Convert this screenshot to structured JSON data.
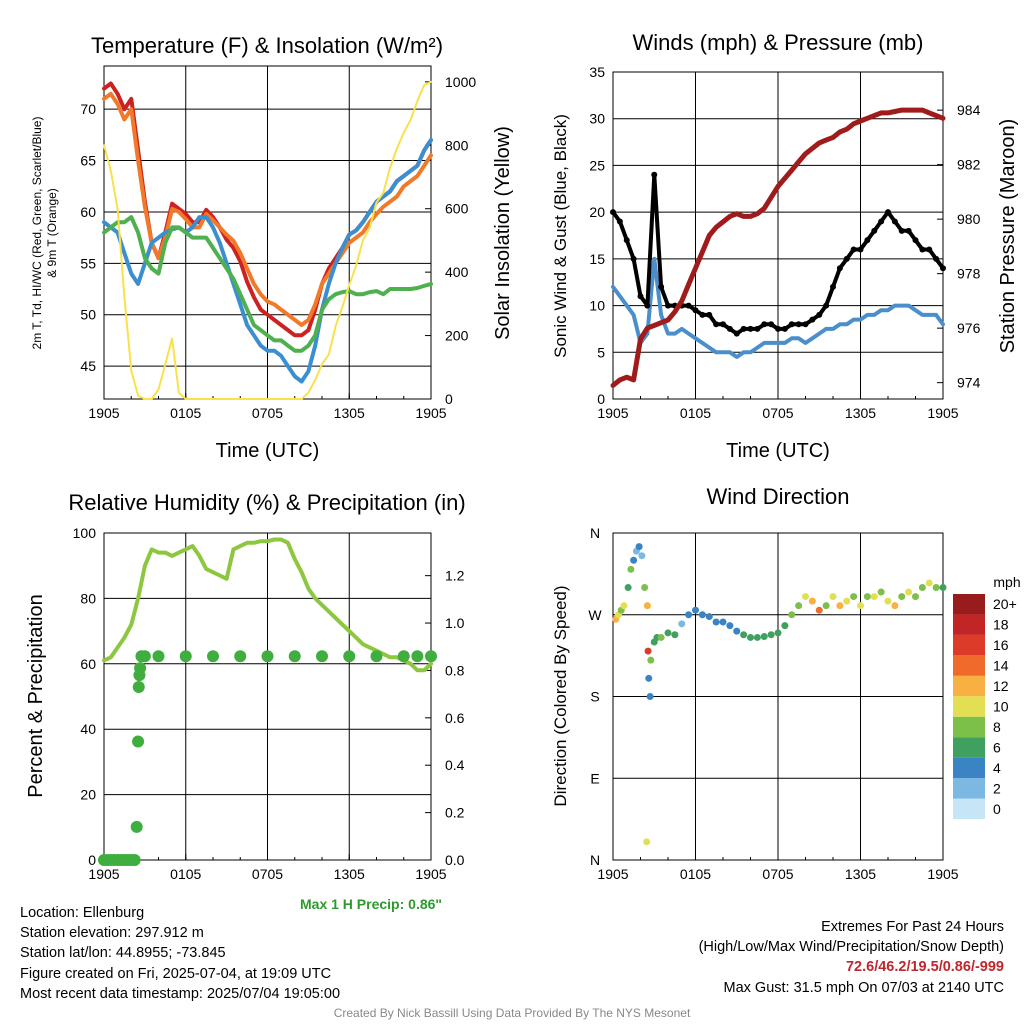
{
  "chart_data": [
    {
      "type": "line",
      "title": "Temperature (F) & Insolation (W/m²)",
      "xlabel": "Time (UTC)",
      "ylabel_left": "2m T, Td, HI/WC (Red, Green, Scarlet/Blue) & 9m T (Orange)",
      "ylabel_right": "Solar Insolation (Yellow)",
      "xticks": [
        "1905",
        "0105",
        "0705",
        "1305",
        "1905"
      ],
      "ylim_left": [
        41.8,
        74.2
      ],
      "yticks_left": [
        45,
        50,
        55,
        60,
        65,
        70
      ],
      "ylim_right": [
        0,
        1050
      ],
      "yticks_right": [
        0,
        200,
        400,
        600,
        800,
        1000
      ],
      "x_hours": [
        0,
        0.5,
        1,
        1.5,
        2,
        2.5,
        3,
        3.5,
        4,
        4.5,
        5,
        5.5,
        6,
        6.5,
        7,
        7.5,
        8,
        8.5,
        9,
        9.5,
        10,
        10.5,
        11,
        11.5,
        12,
        12.5,
        13,
        13.5,
        14,
        14.5,
        15,
        15.5,
        16,
        16.5,
        17,
        17.5,
        18,
        18.5,
        19,
        19.5,
        20,
        20.5,
        21,
        21.5,
        22,
        22.5,
        23,
        23.5,
        24
      ],
      "series": [
        {
          "name": "2m T",
          "color": "#cc2222",
          "values": [
            72,
            72.5,
            71.5,
            70,
            71,
            66,
            61,
            57,
            55.5,
            58,
            60.8,
            60.3,
            59.8,
            59,
            59,
            60.2,
            59.5,
            58.5,
            57.3,
            56.5,
            55.2,
            53.2,
            51.7,
            50.5,
            50,
            49.5,
            49,
            48.5,
            48,
            48,
            48.5,
            50.5,
            53,
            54.5,
            55.5,
            56.5,
            57.8,
            58.2,
            59,
            60,
            61,
            61.5,
            62,
            63,
            63.5,
            64,
            64.5,
            66,
            67
          ]
        },
        {
          "name": "9m T",
          "color": "#f07a2a",
          "values": [
            71,
            71.5,
            70.5,
            69,
            70,
            65,
            60.5,
            57,
            55.5,
            57.5,
            60.3,
            60,
            59.3,
            58.5,
            58.5,
            59.8,
            59.2,
            58.5,
            57.8,
            57.2,
            56,
            54.5,
            53,
            52,
            51.3,
            51,
            50.5,
            50,
            49.5,
            49,
            49.5,
            51,
            53,
            54,
            55,
            56,
            57,
            57.5,
            58,
            59,
            59.8,
            60.5,
            61,
            61.5,
            62.5,
            63,
            63.5,
            64.5,
            65.5
          ]
        },
        {
          "name": "HI/WC",
          "color": "#3b8fd0",
          "values": [
            59,
            58.5,
            58,
            56,
            54,
            53,
            55,
            57,
            57.5,
            58,
            58.3,
            58.5,
            58,
            58.5,
            59.5,
            59.5,
            58.5,
            57,
            55,
            53,
            51,
            49,
            48,
            47,
            46.5,
            46.5,
            46,
            45,
            44,
            43.5,
            44.5,
            47,
            50.5,
            53,
            55,
            56.5,
            57.8,
            58.2,
            59,
            60,
            61,
            61.5,
            62,
            63,
            63.5,
            64,
            64.5,
            66,
            67
          ]
        },
        {
          "name": "Td",
          "color": "#4fb04f",
          "values": [
            58,
            58.5,
            59,
            59,
            59.5,
            58,
            55.5,
            54.5,
            54,
            57,
            58.5,
            58.5,
            58,
            57.5,
            57.5,
            57.5,
            56.5,
            55.5,
            54.5,
            53.5,
            52,
            50.5,
            49,
            48.5,
            48,
            47.5,
            47.5,
            47,
            46.5,
            46.5,
            47,
            48,
            50.5,
            51.5,
            52,
            52.2,
            52.3,
            52,
            52,
            52.2,
            52.3,
            52,
            52.5,
            52.5,
            52.5,
            52.5,
            52.6,
            52.8,
            53
          ]
        },
        {
          "name": "Solar Insolation",
          "color": "#f9e14a",
          "axis": "right",
          "values": [
            800,
            720,
            600,
            320,
            90,
            10,
            0,
            0,
            30,
            110,
            190,
            20,
            0,
            0,
            0,
            0,
            0,
            0,
            0,
            0,
            0,
            0,
            0,
            0,
            0,
            0,
            0,
            0,
            0,
            0,
            20,
            60,
            110,
            140,
            230,
            290,
            360,
            420,
            500,
            540,
            620,
            650,
            730,
            790,
            840,
            880,
            940,
            990,
            1000
          ]
        }
      ]
    },
    {
      "type": "line",
      "title": "Winds (mph) & Pressure (mb)",
      "xlabel": "Time (UTC)",
      "ylabel_left": "Sonic Wind & Gust (Blue, Black)",
      "ylabel_right": "Station Pressure (Maroon)",
      "xticks": [
        "1905",
        "0105",
        "0705",
        "1305",
        "1905"
      ],
      "ylim_left": [
        0,
        35
      ],
      "yticks_left": [
        0,
        5,
        10,
        15,
        20,
        25,
        30,
        35
      ],
      "ylim_right": [
        973.4,
        985.4
      ],
      "yticks_right": [
        974,
        976,
        978,
        980,
        982,
        984
      ],
      "x_hours": [
        0,
        0.5,
        1,
        1.5,
        2,
        2.5,
        3,
        3.5,
        4,
        4.5,
        5,
        5.5,
        6,
        6.5,
        7,
        7.5,
        8,
        8.5,
        9,
        9.5,
        10,
        10.5,
        11,
        11.5,
        12,
        12.5,
        13,
        13.5,
        14,
        14.5,
        15,
        15.5,
        16,
        16.5,
        17,
        17.5,
        18,
        18.5,
        19,
        19.5,
        20,
        20.5,
        21,
        21.5,
        22,
        22.5,
        23,
        23.5,
        24
      ],
      "series": [
        {
          "name": "Sonic Wind",
          "color": "#4a8fcc",
          "values": [
            12,
            11,
            10,
            9,
            6,
            7,
            15,
            9,
            7,
            7,
            7.5,
            7,
            6.5,
            6,
            5.5,
            5,
            5,
            5,
            4.5,
            5,
            5,
            5.5,
            6,
            6,
            6,
            6,
            6.5,
            6.5,
            6,
            6.5,
            7,
            7.5,
            7.5,
            8,
            8,
            8.5,
            8.5,
            9,
            9,
            9.5,
            9.5,
            10,
            10,
            10,
            9.5,
            9,
            9,
            9,
            8
          ]
        },
        {
          "name": "Gust",
          "color": "#000000",
          "values": [
            20,
            19,
            17,
            15,
            11,
            10,
            24,
            12,
            10,
            10,
            10,
            10,
            9.5,
            9,
            9,
            8,
            8,
            7.5,
            7,
            7.5,
            7.5,
            7.5,
            8,
            8,
            7.5,
            7.5,
            8,
            8,
            8,
            8.5,
            9,
            10,
            12,
            14,
            15,
            16,
            16,
            17,
            18,
            19,
            20,
            19,
            18,
            18,
            17,
            16,
            16,
            15,
            14
          ]
        },
        {
          "name": "Station Pressure",
          "color": "#a01c1c",
          "axis": "right",
          "values": [
            973.9,
            974.1,
            974.2,
            974.1,
            975.6,
            976,
            976.1,
            976.2,
            976.3,
            976.6,
            977,
            977.6,
            978.2,
            978.8,
            979.4,
            979.7,
            979.9,
            980.1,
            980.2,
            980.1,
            980.1,
            980.2,
            980.4,
            980.8,
            981.2,
            981.5,
            981.8,
            982.1,
            982.4,
            982.6,
            982.8,
            982.9,
            983,
            983.2,
            983.3,
            983.5,
            983.6,
            983.7,
            983.8,
            983.9,
            983.9,
            983.95,
            984,
            984,
            984,
            984,
            983.9,
            983.8,
            983.7
          ]
        }
      ]
    },
    {
      "type": "line",
      "title": "Relative Humidity (%) & Precipitation (in)",
      "ylabel_left": "Percent & Precipitation",
      "xticks": [
        "1905",
        "0105",
        "0705",
        "1305",
        "1905"
      ],
      "ylim_left": [
        0,
        100
      ],
      "yticks_left": [
        0,
        20,
        40,
        60,
        80,
        100
      ],
      "ylim_right": [
        0,
        1.38
      ],
      "yticks_right": [
        "0.0",
        "0.2",
        "0.4",
        "0.6",
        "0.8",
        "1.0",
        "1.2"
      ],
      "x_hours": [
        0,
        0.5,
        1,
        1.5,
        2,
        2.5,
        3,
        3.5,
        4,
        4.5,
        5,
        5.5,
        6,
        6.5,
        7,
        7.5,
        8,
        8.5,
        9,
        9.5,
        10,
        10.5,
        11,
        11.5,
        12,
        12.5,
        13,
        13.5,
        14,
        14.5,
        15,
        15.5,
        16,
        16.5,
        17,
        17.5,
        18,
        18.5,
        19,
        19.5,
        20,
        20.5,
        21,
        21.5,
        22,
        22.5,
        23,
        23.5,
        24
      ],
      "series": [
        {
          "name": "Relative Humidity",
          "color": "#8dc63f",
          "values": [
            61,
            62,
            65,
            68,
            72,
            80,
            90,
            95,
            94,
            94,
            93,
            94,
            95,
            96,
            93,
            89,
            88,
            87,
            86,
            95,
            96,
            97,
            97,
            97.5,
            97.5,
            98,
            98,
            97,
            92,
            88,
            83,
            80,
            78,
            76,
            74,
            72,
            70,
            68,
            66,
            65,
            64,
            63,
            62,
            62,
            61,
            60,
            58,
            58,
            60
          ]
        },
        {
          "name": "Precipitation",
          "color": "#3fae3f",
          "axis": "right",
          "points": [
            [
              0,
              0
            ],
            [
              0.25,
              0
            ],
            [
              0.5,
              0
            ],
            [
              0.75,
              0
            ],
            [
              1,
              0
            ],
            [
              1.25,
              0
            ],
            [
              1.5,
              0
            ],
            [
              1.75,
              0
            ],
            [
              2,
              0
            ],
            [
              2.25,
              0
            ],
            [
              2.4,
              0.14
            ],
            [
              2.5,
              0.5
            ],
            [
              2.55,
              0.73
            ],
            [
              2.6,
              0.78
            ],
            [
              2.65,
              0.81
            ],
            [
              2.75,
              0.86
            ],
            [
              3,
              0.86
            ],
            [
              4,
              0.86
            ],
            [
              6,
              0.86
            ],
            [
              8,
              0.86
            ],
            [
              10,
              0.86
            ],
            [
              12,
              0.86
            ],
            [
              14,
              0.86
            ],
            [
              16,
              0.86
            ],
            [
              18,
              0.86
            ],
            [
              20,
              0.86
            ],
            [
              22,
              0.86
            ],
            [
              23,
              0.86
            ],
            [
              24,
              0.86
            ]
          ]
        }
      ]
    },
    {
      "type": "scatter",
      "title": "Wind Direction",
      "ylabel": "Direction (Colored By Speed)",
      "xticks": [
        "1905",
        "0105",
        "0705",
        "1305",
        "1905"
      ],
      "yticks": [
        "N",
        "E",
        "S",
        "W",
        "N"
      ],
      "ylim": [
        0,
        360
      ],
      "colorbar": {
        "label": "mph",
        "levels": [
          "0",
          "2",
          "4",
          "6",
          "8",
          "10",
          "12",
          "14",
          "16",
          "18",
          "20+"
        ],
        "colors": [
          "#c6e5f7",
          "#7cb9e2",
          "#3b84c4",
          "#40a060",
          "#7cc04a",
          "#e2e052",
          "#f8b043",
          "#f06a2c",
          "#dd3b2a",
          "#c22525",
          "#991c1c"
        ]
      },
      "points": [
        [
          0.2,
          265,
          12
        ],
        [
          0.4,
          270,
          10
        ],
        [
          0.6,
          275,
          8
        ],
        [
          0.8,
          280,
          10
        ],
        [
          1.1,
          300,
          6
        ],
        [
          1.3,
          320,
          8
        ],
        [
          1.5,
          330,
          4
        ],
        [
          1.7,
          340,
          2
        ],
        [
          1.9,
          345,
          4
        ],
        [
          2.1,
          335,
          2
        ],
        [
          2.3,
          300,
          8
        ],
        [
          2.5,
          280,
          12
        ],
        [
          2.55,
          230,
          16
        ],
        [
          2.6,
          200,
          4
        ],
        [
          2.7,
          180,
          4
        ],
        [
          2.75,
          220,
          8
        ],
        [
          2.45,
          20,
          10
        ],
        [
          3,
          240,
          6
        ],
        [
          3.2,
          245,
          6
        ],
        [
          3.5,
          245,
          8
        ],
        [
          4,
          250,
          6
        ],
        [
          4.5,
          248,
          6
        ],
        [
          5,
          260,
          2
        ],
        [
          5.5,
          270,
          4
        ],
        [
          6,
          275,
          4
        ],
        [
          6.5,
          270,
          4
        ],
        [
          7,
          268,
          4
        ],
        [
          7.5,
          262,
          4
        ],
        [
          8,
          262,
          4
        ],
        [
          8.5,
          258,
          4
        ],
        [
          9,
          252,
          4
        ],
        [
          9.5,
          248,
          6
        ],
        [
          10,
          245,
          6
        ],
        [
          10.5,
          245,
          6
        ],
        [
          11,
          246,
          6
        ],
        [
          11.5,
          248,
          6
        ],
        [
          12,
          250,
          6
        ],
        [
          12.5,
          258,
          6
        ],
        [
          13,
          270,
          8
        ],
        [
          13.5,
          280,
          8
        ],
        [
          14,
          290,
          10
        ],
        [
          14.5,
          285,
          12
        ],
        [
          15,
          275,
          14
        ],
        [
          15.5,
          280,
          8
        ],
        [
          16,
          290,
          10
        ],
        [
          16.5,
          280,
          12
        ],
        [
          17,
          285,
          10
        ],
        [
          17.5,
          290,
          8
        ],
        [
          18,
          280,
          10
        ],
        [
          18.5,
          290,
          8
        ],
        [
          19,
          290,
          10
        ],
        [
          19.5,
          295,
          8
        ],
        [
          20,
          285,
          10
        ],
        [
          20.5,
          280,
          12
        ],
        [
          21,
          290,
          8
        ],
        [
          21.5,
          295,
          10
        ],
        [
          22,
          290,
          8
        ],
        [
          22.5,
          300,
          8
        ],
        [
          23,
          305,
          10
        ],
        [
          23.5,
          300,
          8
        ],
        [
          24,
          300,
          6
        ]
      ]
    }
  ],
  "precip_max_label": "Max 1 H Precip: 0.86\"",
  "info_left": [
    "Location: Ellenburg",
    "Station elevation: 297.912 m",
    "Station lat/lon: 44.8955; -73.845",
    "Figure created on Fri, 2025-07-04, at 19:09 UTC",
    "Most recent data timestamp: 2025/07/04 19:05:00"
  ],
  "info_right": {
    "line1": "Extremes For Past 24 Hours",
    "line2": "(High/Low/Max Wind/Precipitation/Snow Depth)",
    "extremes": "72.6/46.2/19.5/0.86/-999",
    "gust": "Max Gust: 31.5 mph On 07/03 at 2140 UTC"
  },
  "credit": "Created By Nick Bassill Using Data Provided By The NYS Mesonet"
}
